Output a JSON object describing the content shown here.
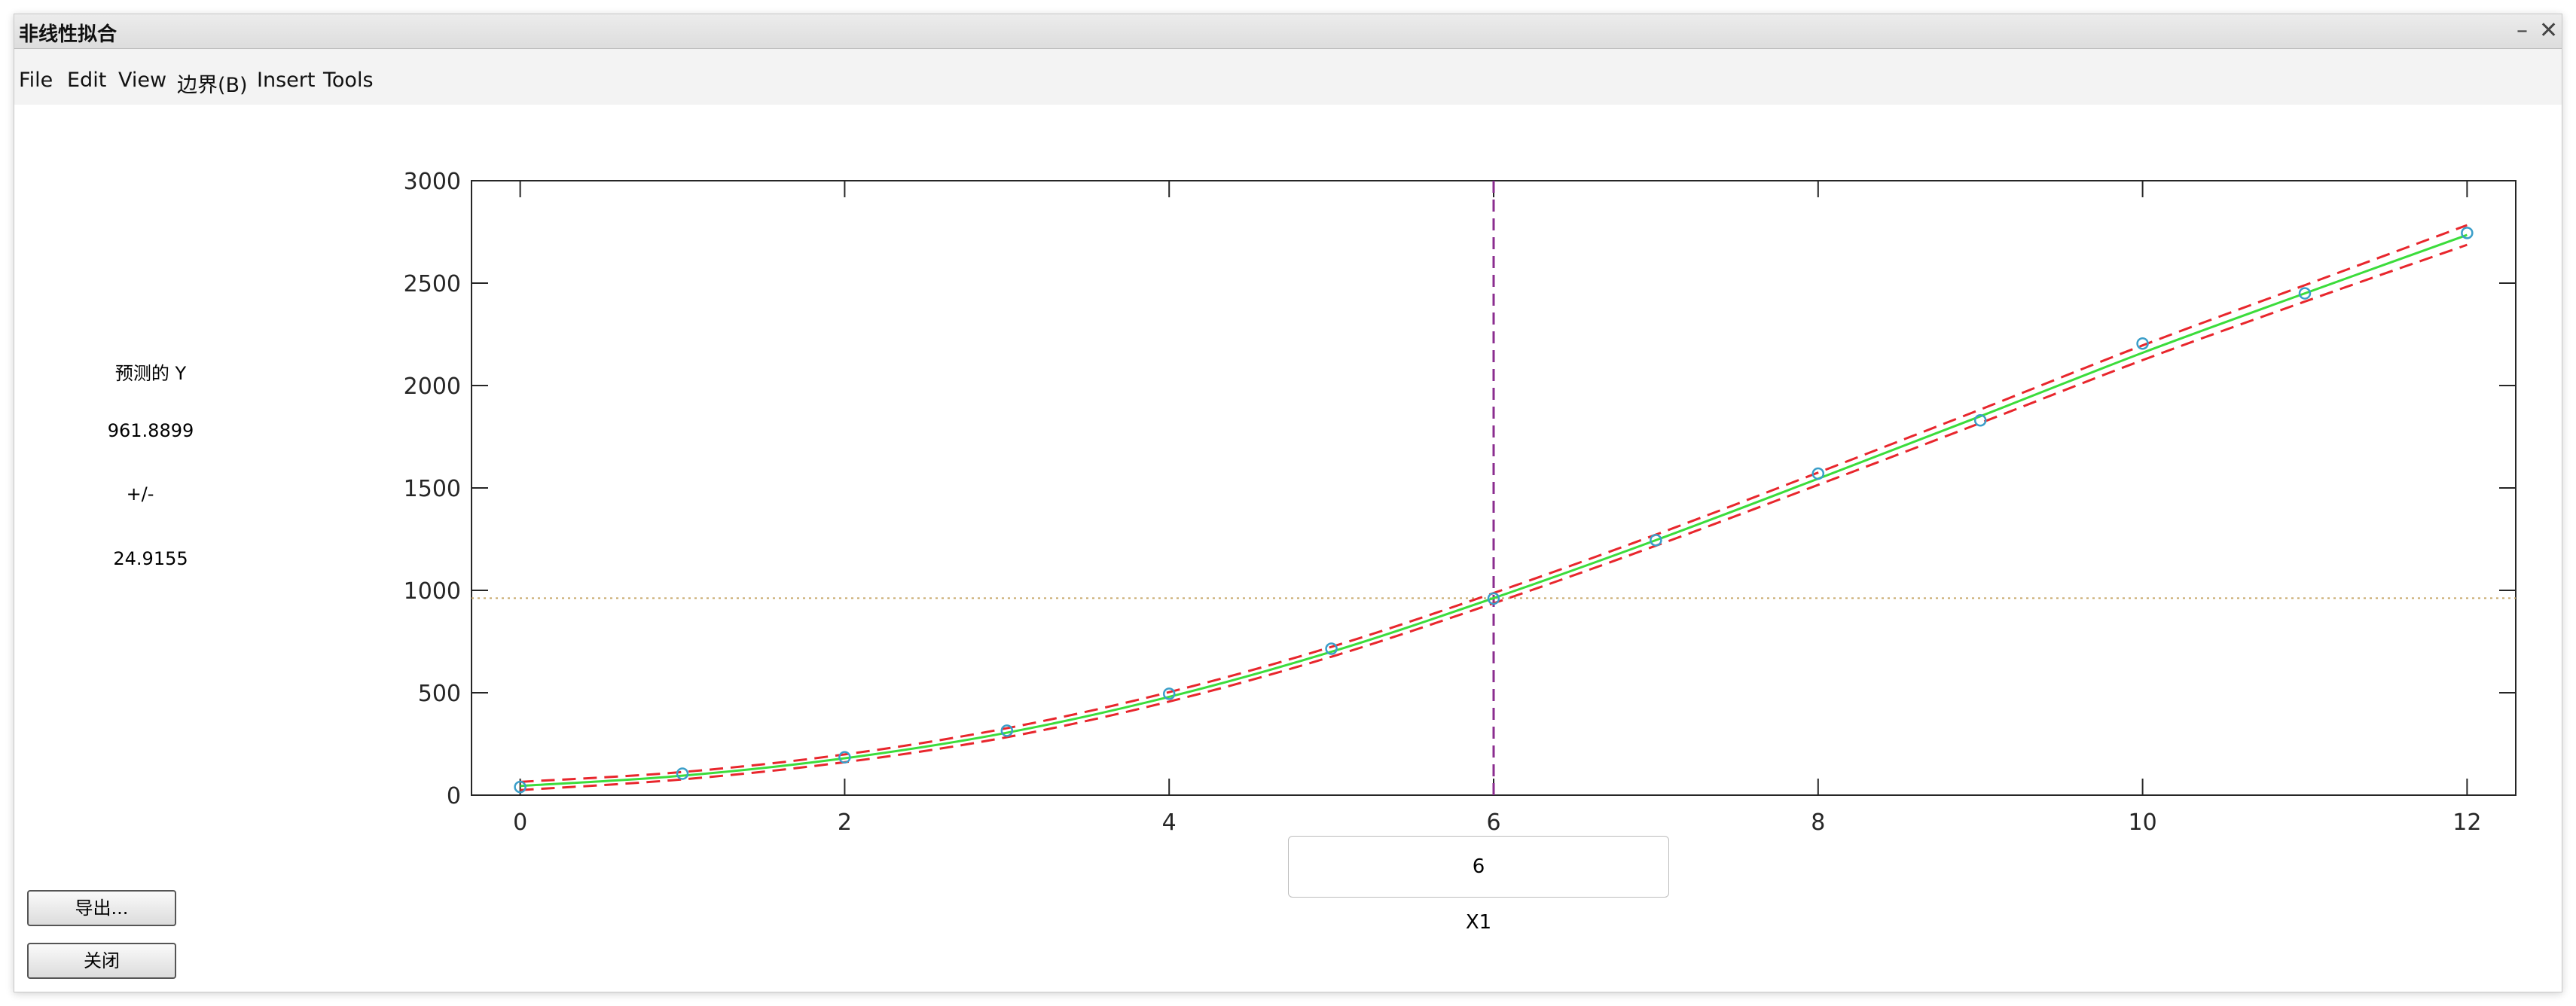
{
  "window": {
    "title": "非线性拟合"
  },
  "menu": [
    "File",
    "Edit",
    "View",
    "边界(B)",
    "Insert",
    "Tools"
  ],
  "info": {
    "label": "预测的 Y",
    "predicted_value": "961.8899",
    "pm_label": "+/-",
    "interval": "24.9155"
  },
  "buttons": {
    "export": "导出...",
    "close": "关闭"
  },
  "x_input": {
    "value": "6",
    "label": "X1"
  },
  "chart_data": {
    "type": "line",
    "xlim": [
      -0.3,
      12.3
    ],
    "ylim": [
      0,
      3000
    ],
    "x_ticks": [
      0,
      2,
      4,
      6,
      8,
      10,
      12
    ],
    "y_ticks": [
      0,
      500,
      1000,
      1500,
      2000,
      2500,
      3000
    ],
    "observed_points": {
      "x": [
        0,
        1,
        2,
        3,
        4,
        5,
        6,
        7,
        8,
        9,
        10,
        11,
        12
      ],
      "y": [
        40,
        105,
        185,
        315,
        495,
        715,
        960,
        1245,
        1570,
        1830,
        2205,
        2450,
        2745
      ]
    },
    "fit_curve": {
      "x": [
        0,
        1,
        2,
        3,
        4,
        5,
        6,
        7,
        8,
        9,
        10,
        11,
        12
      ],
      "y": [
        45,
        95,
        180,
        305,
        480,
        700,
        962,
        1245,
        1545,
        1850,
        2160,
        2450,
        2735
      ]
    },
    "confidence_halfwidth": {
      "x": [
        0,
        1,
        2,
        3,
        4,
        5,
        6,
        7,
        8,
        9,
        10,
        11,
        12
      ],
      "y": [
        20,
        18,
        19,
        22,
        23,
        24,
        25,
        27,
        30,
        33,
        36,
        40,
        48
      ]
    },
    "crosshair": {
      "x": 6,
      "y": 961.8899
    },
    "colors": {
      "points": "#3a9ec9",
      "fit": "#3bdc3b",
      "bounds": "#e8262c",
      "vline": "#8b2d8f",
      "hline": "#c8a86a"
    }
  }
}
